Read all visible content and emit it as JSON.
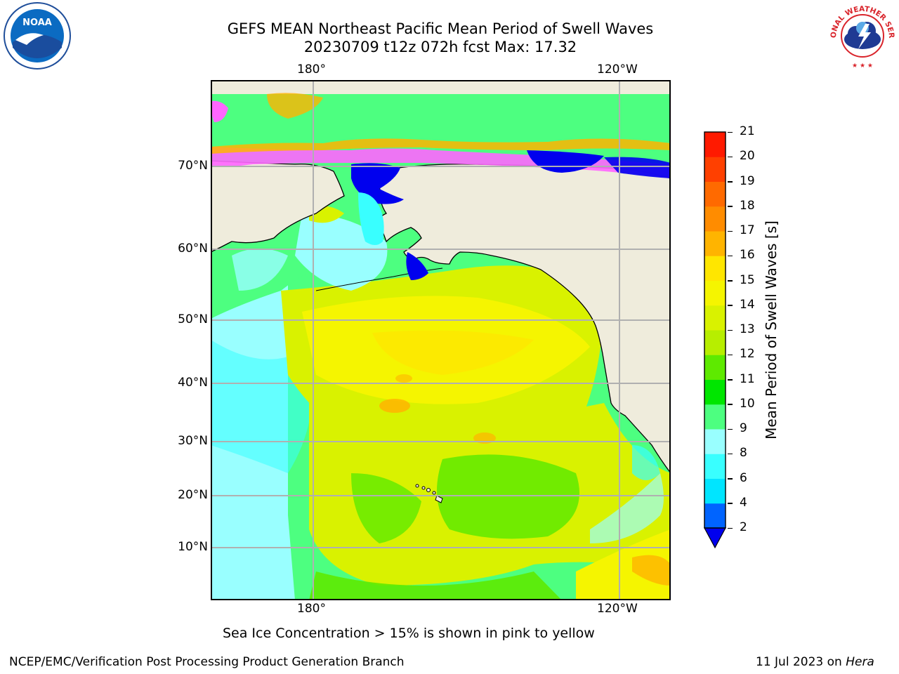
{
  "header": {
    "title_line1": "GEFS MEAN Northeast Pacific Mean Period of Swell Waves",
    "title_line2": "20230709 t12z 072h fcst   Max: 17.32"
  },
  "logos": {
    "left": {
      "text": "NOAA",
      "icon": "noaa-logo"
    },
    "right": {
      "ring_text": "NATIONAL WEATHER SERVICE",
      "icon": "nws-logo"
    }
  },
  "map": {
    "lon_labels_top": [
      "180°",
      "120°W"
    ],
    "lon_labels_bottom": [
      "180°",
      "120°W"
    ],
    "lat_labels": [
      "70°N",
      "60°N",
      "50°N",
      "40°N",
      "30°N",
      "20°N",
      "10°N"
    ],
    "land_color": "#efecdc",
    "grid_color": "#b0b0b0"
  },
  "colorbar": {
    "label": "Mean Period of Swell Waves [s]",
    "tick_labels": [
      "2",
      "4",
      "6",
      "8",
      "9",
      "10",
      "11",
      "12",
      "13",
      "14",
      "15",
      "16",
      "17",
      "18",
      "19",
      "20",
      "21"
    ],
    "colors": [
      "#0064ff",
      "#00e5ff",
      "#39ffff",
      "#99ffff",
      "#4dff80",
      "#00e600",
      "#5eea00",
      "#b7ee00",
      "#d9f200",
      "#f5f500",
      "#ffe600",
      "#ffb400",
      "#ff8c00",
      "#ff6a00",
      "#ff4000",
      "#ff1a00",
      "#ff0000"
    ],
    "under_color": "#0000ee"
  },
  "footer": {
    "note": "Sea Ice Concentration > 15% is shown in pink to yellow",
    "branch": "NCEP/EMC/Verification Post Processing Product Generation Branch",
    "date": "11 Jul 2023 on ",
    "machine": "Hera"
  }
}
